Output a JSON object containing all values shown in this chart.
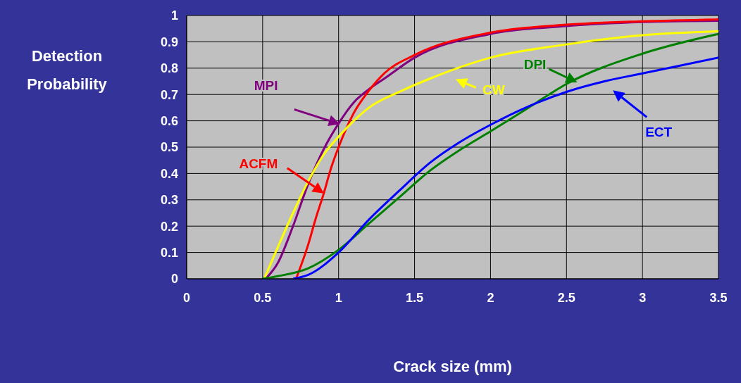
{
  "chart_data": {
    "type": "line",
    "xlabel": "Crack size (mm)",
    "ylabel": "Detection Probability",
    "xlim": [
      0,
      3.5
    ],
    "xticks": [
      0,
      0.5,
      1,
      1.5,
      2,
      2.5,
      3,
      3.5
    ],
    "ylim": [
      0,
      1
    ],
    "yticks": [
      0,
      0.1,
      0.2,
      0.3,
      0.4,
      0.5,
      0.6,
      0.7,
      0.8,
      0.9,
      1
    ],
    "grid": true,
    "legend": "top right",
    "marker": "none",
    "line_style": "solid",
    "series": [
      {
        "name": "MPI",
        "color": "#800080",
        "x": [
          0.52,
          0.6,
          0.7,
          0.8,
          0.9,
          1,
          1.1,
          1.2,
          1.3,
          1.5,
          2,
          2.5,
          3,
          3.5
        ],
        "values": [
          0,
          0.06,
          0.2,
          0.36,
          0.49,
          0.59,
          0.67,
          0.72,
          0.76,
          0.84,
          0.93,
          0.96,
          0.975,
          0.98
        ]
      },
      {
        "name": "ACFM",
        "color": "#ff0000",
        "x": [
          0.72,
          0.8,
          0.85,
          0.9,
          0.95,
          1,
          1.1,
          1.2,
          1.3,
          1.5,
          2,
          2.5,
          3,
          3.5
        ],
        "values": [
          0,
          0.13,
          0.23,
          0.32,
          0.42,
          0.5,
          0.63,
          0.715,
          0.78,
          0.85,
          0.935,
          0.965,
          0.978,
          0.985
        ]
      },
      {
        "name": "CW",
        "color": "#ffff00",
        "x": [
          0.51,
          0.6,
          0.7,
          0.8,
          0.9,
          1,
          1.1,
          1.2,
          1.4,
          1.6,
          2,
          2.5,
          3,
          3.5
        ],
        "values": [
          0,
          0.12,
          0.25,
          0.37,
          0.47,
          0.54,
          0.6,
          0.65,
          0.71,
          0.76,
          0.84,
          0.89,
          0.925,
          0.94
        ]
      },
      {
        "name": "DPI",
        "color": "#008000",
        "x": [
          0.5,
          0.6,
          0.8,
          1,
          1.2,
          1.4,
          1.6,
          1.8,
          2,
          2.25,
          2.5,
          3,
          3.5
        ],
        "values": [
          0,
          0.01,
          0.04,
          0.11,
          0.21,
          0.31,
          0.41,
          0.49,
          0.56,
          0.65,
          0.74,
          0.855,
          0.93
        ]
      },
      {
        "name": "ECT",
        "color": "#0000ff",
        "x": [
          0.7,
          0.8,
          1,
          1.2,
          1.4,
          1.6,
          1.8,
          2,
          2.25,
          2.5,
          2.75,
          3,
          3.5
        ],
        "values": [
          0,
          0.015,
          0.1,
          0.225,
          0.335,
          0.44,
          0.52,
          0.585,
          0.655,
          0.71,
          0.75,
          0.78,
          0.84
        ]
      }
    ]
  }
}
